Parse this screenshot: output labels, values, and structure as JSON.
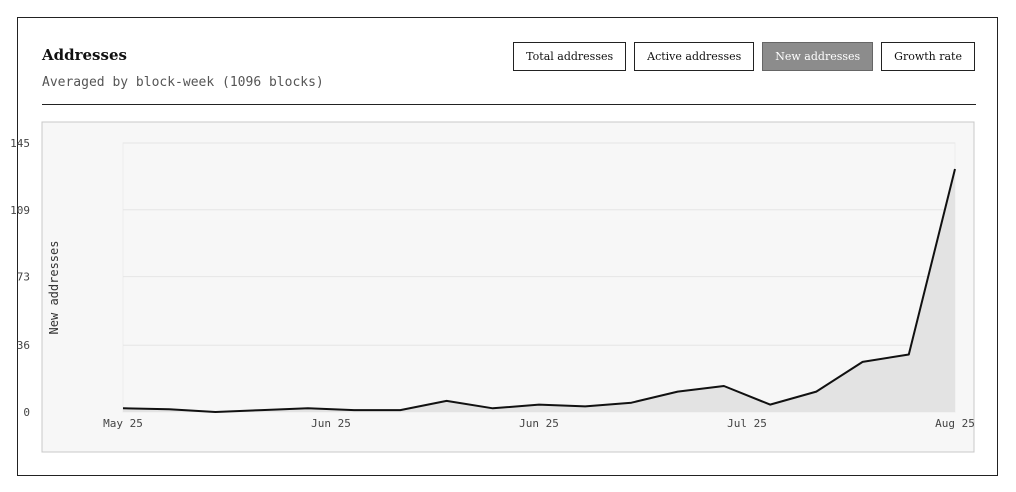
{
  "header": {
    "title": "Addresses",
    "subtitle": "Averaged by block-week (1096 blocks)"
  },
  "buttons": [
    {
      "label": "Total addresses",
      "active": false
    },
    {
      "label": "Active addresses",
      "active": false
    },
    {
      "label": "New addresses",
      "active": true
    },
    {
      "label": "Growth rate",
      "active": false
    }
  ],
  "chart_data": {
    "type": "area",
    "ylabel": "New addresses",
    "xlabel": "",
    "y_ticks": [
      0,
      36,
      73,
      109,
      145
    ],
    "ylim": [
      0,
      145
    ],
    "x_tick_labels": [
      "May 25",
      "Jun 25",
      "Jun 25",
      "Jul 25",
      "Aug 25"
    ],
    "grid": true,
    "series": [
      {
        "values": [
          2,
          1.5,
          0,
          1,
          2,
          1,
          1,
          6,
          2,
          4,
          3,
          5,
          11,
          14,
          4,
          11,
          27,
          31,
          131
        ]
      }
    ],
    "colors": {
      "line": "#111111",
      "fill": "#e3e3e3",
      "plot_bg": "#f7f7f7",
      "grid": "#e6e6e6"
    }
  }
}
